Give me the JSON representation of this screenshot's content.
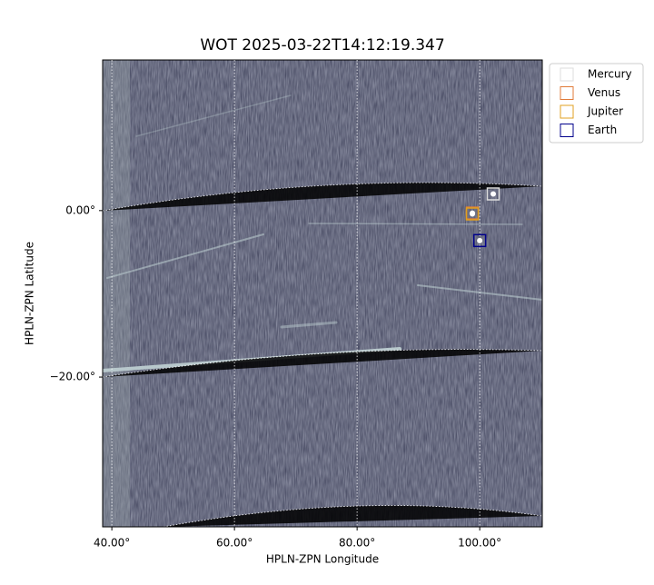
{
  "chart_data": {
    "type": "scatter",
    "title": "WOT 2025-03-22T14:12:19.347",
    "xlabel": "HPLN-ZPN Longitude",
    "ylabel": "HPLN-ZPN Latitude",
    "xlim": [
      38.5,
      110.2
    ],
    "ylim": [
      -38.0,
      18.1
    ],
    "xticks": [
      {
        "value": 40,
        "label": "40.00°"
      },
      {
        "value": 60,
        "label": "60.00°"
      },
      {
        "value": 80,
        "label": "80.00°"
      },
      {
        "value": 100,
        "label": "100.00°"
      }
    ],
    "yticks": [
      {
        "value": 0,
        "label": "0.00°"
      },
      {
        "value": -20,
        "label": "−20.00°"
      }
    ],
    "grid": true,
    "legend": "outside-upper-right",
    "series": [
      {
        "name": "Mercury",
        "color": "#dddddd",
        "x": [
          102.2
        ],
        "values": [
          2.0
        ]
      },
      {
        "name": "Venus",
        "color": "#e07b39",
        "x": [
          98.8
        ],
        "values": [
          -0.3
        ]
      },
      {
        "name": "Jupiter",
        "color": "#e0a020",
        "x": [
          98.8
        ],
        "values": [
          -0.4
        ]
      },
      {
        "name": "Earth",
        "color": "#00008b",
        "x": [
          100.0
        ],
        "values": [
          -3.6
        ]
      }
    ]
  }
}
